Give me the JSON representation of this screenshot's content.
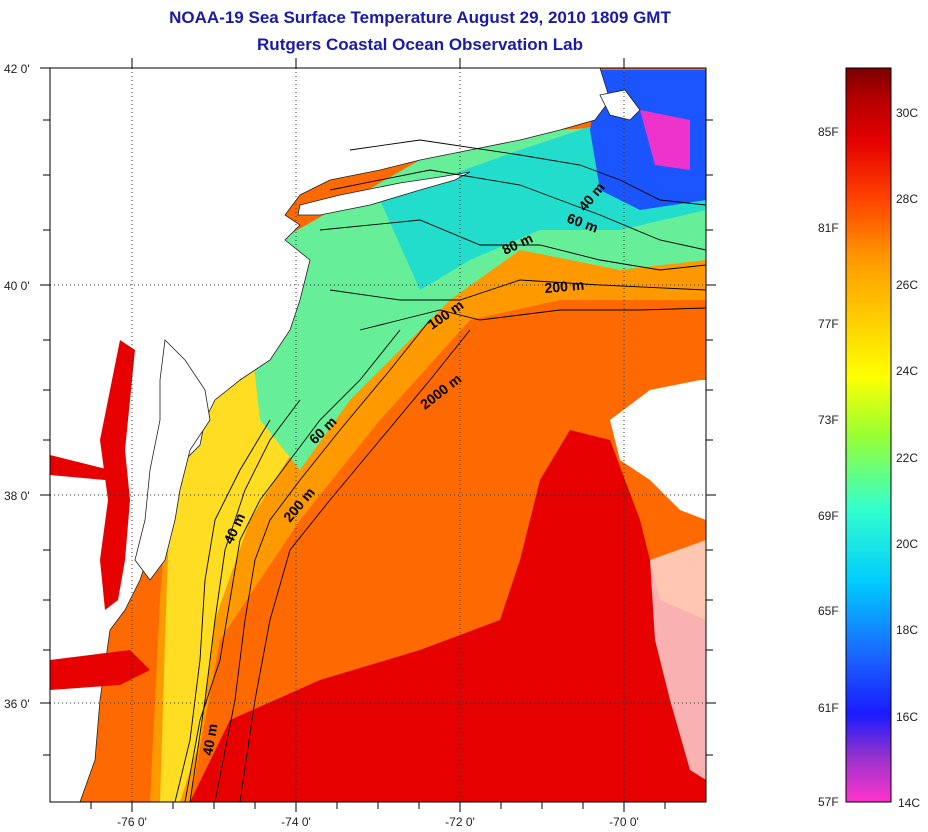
{
  "title": {
    "line1": "NOAA-19 Sea Surface Temperature August 29, 2010 1809 GMT",
    "line2": "Rutgers Coastal Ocean Observation Lab"
  },
  "map": {
    "lat_labels": [
      "42 0'",
      "40 0'",
      "38 0'",
      "36 0'"
    ],
    "lon_labels": [
      "-76 0'",
      "-74 0'",
      "-72 0'",
      "-70 0'"
    ],
    "contours": [
      {
        "label": "40 m"
      },
      {
        "label": "60 m"
      },
      {
        "label": "80 m"
      },
      {
        "label": "200 m"
      },
      {
        "label": "100 m"
      },
      {
        "label": "2000 m"
      },
      {
        "label": "60 m"
      },
      {
        "label": "200 m"
      },
      {
        "label": "40 m"
      },
      {
        "label": "40 m"
      }
    ],
    "colors": {
      "land": "#ffffff",
      "frame": "#000000",
      "grid": "#333333"
    }
  },
  "colorbar": {
    "fahrenheit": [
      "85F",
      "81F",
      "77F",
      "73F",
      "69F",
      "65F",
      "61F",
      "57F"
    ],
    "celsius": [
      "30C",
      "28C",
      "26C",
      "24C",
      "22C",
      "20C",
      "18C",
      "16C",
      "14C"
    ],
    "gradient_colors": [
      "#ff33cc",
      "#9933cc",
      "#1a1aff",
      "#1a66ff",
      "#00ccff",
      "#33ffcc",
      "#99ff33",
      "#ffff00",
      "#ffcc00",
      "#ff9900",
      "#ff4400",
      "#e60000",
      "#b30000",
      "#7a0000"
    ]
  }
}
